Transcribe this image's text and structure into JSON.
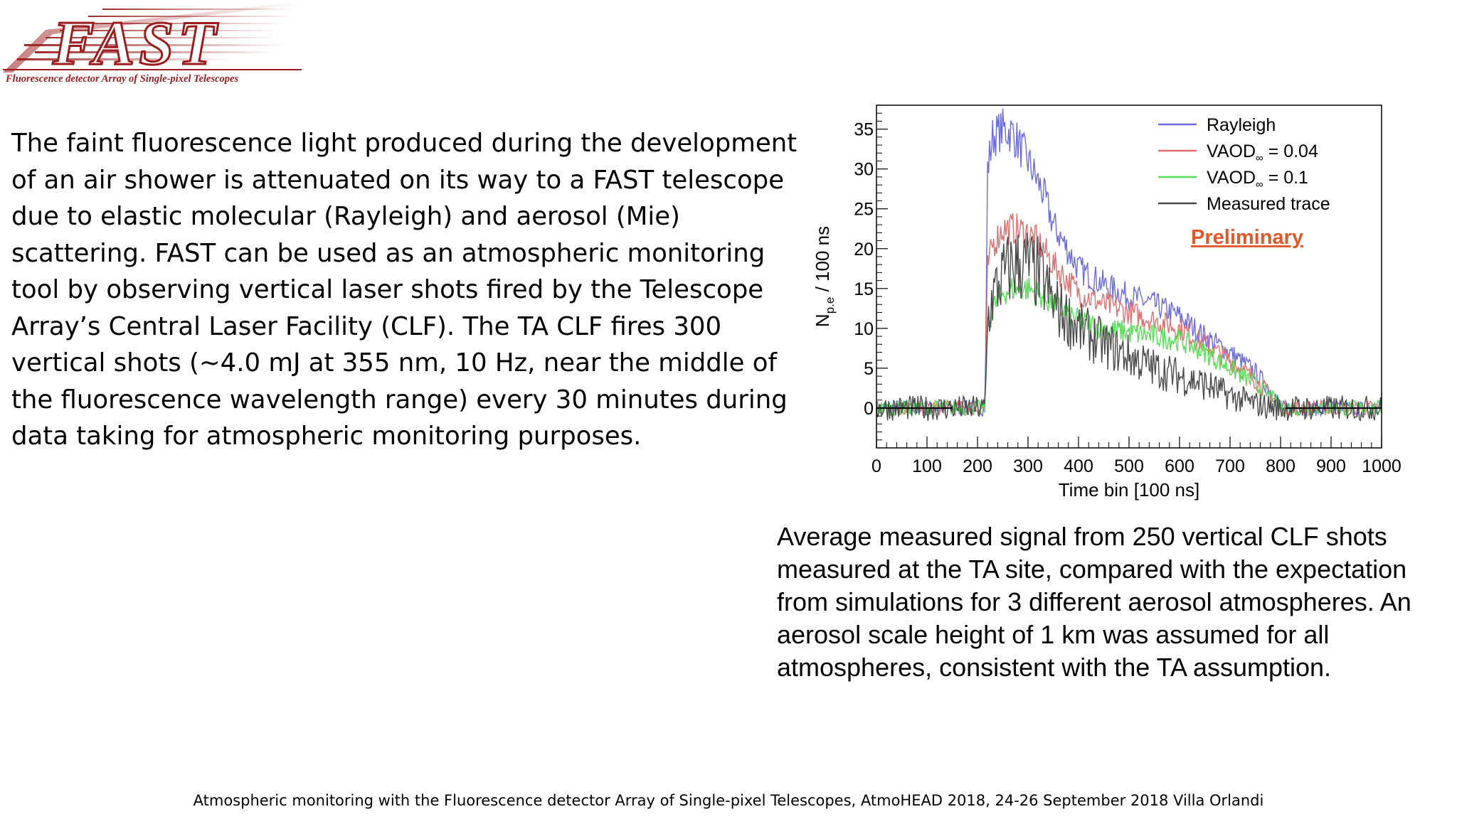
{
  "logo": {
    "word": "FAST",
    "subtitle": "Fluorescence detector Array of Single-pixel Telescopes",
    "color": "#9b1c1c"
  },
  "body_lines": [
    "The faint fluorescence light produced during the development",
    "of an air shower is attenuated on its way to a FAST telescope",
    "due to elastic molecular (Rayleigh) and aerosol (Mie)",
    "scattering. FAST can be used as an atmospheric monitoring",
    "tool  by observing vertical laser shots fired by the Telescope",
    "Array’s Central Laser Facility (CLF). The TA CLF fires 300",
    "vertical shots (∼4.0 mJ at 355 nm, 10 Hz, near the middle of",
    "the fluorescence wavelength range) every 30 minutes during",
    "data taking for atmospheric monitoring purposes."
  ],
  "caption_lines": [
    "Average measured signal from 250 vertical CLF shots",
    "measured at the TA site, compared with the expectation",
    "from simulations for 3 different aerosol atmospheres. An",
    "aerosol scale height of 1 km was assumed for all",
    "atmospheres, consistent with the TA assumption."
  ],
  "footer": "Atmospheric monitoring with the Fluorescence detector Array of Single-pixel Telescopes, AtmoHEAD 2018, 24-26 September 2018 Villa Orlandi",
  "chart_data": {
    "type": "line",
    "title": "",
    "xlabel": "Time bin [100 ns]",
    "ylabel_main": "N",
    "ylabel_sub": "p.e",
    "ylabel_rest": " / 100 ns",
    "xlim": [
      0,
      1000
    ],
    "ylim": [
      -5,
      38
    ],
    "xticks": [
      0,
      100,
      200,
      300,
      400,
      500,
      600,
      700,
      800,
      900,
      1000
    ],
    "yticks": [
      0,
      5,
      10,
      15,
      20,
      25,
      30,
      35
    ],
    "legend_position": "top-right",
    "annotation": "Preliminary",
    "annotation_color": "#e0582a",
    "x": [
      0,
      150,
      200,
      215,
      220,
      230,
      250,
      270,
      300,
      330,
      350,
      400,
      450,
      500,
      550,
      600,
      650,
      700,
      750,
      790,
      800,
      810,
      900,
      1000
    ],
    "series": [
      {
        "name": "Rayleigh",
        "legend_sub": "",
        "legend_rest": "",
        "color": "#6b6be0",
        "values": [
          0,
          0,
          0,
          0,
          30,
          34,
          35,
          34.5,
          31,
          27,
          23,
          17.5,
          15.5,
          14,
          13,
          11.5,
          9,
          7,
          4.5,
          1.5,
          0,
          0,
          0,
          0
        ]
      },
      {
        "name": "VAOD",
        "legend_sub": "∞",
        "legend_rest": " = 0.04",
        "color": "#e07070",
        "values": [
          0,
          0,
          0,
          0,
          17.5,
          20.5,
          22.5,
          22.5,
          22,
          20,
          18,
          14.5,
          13,
          12,
          11,
          10,
          8,
          6,
          3.5,
          1,
          0,
          0,
          0,
          0
        ]
      },
      {
        "name": "VAOD",
        "legend_sub": "∞",
        "legend_rest": " = 0.1",
        "color": "#55dd55",
        "values": [
          0,
          0,
          0,
          0,
          10,
          12.5,
          14.5,
          15,
          15,
          14,
          13,
          11,
          10,
          9.5,
          9,
          8.5,
          7,
          5,
          3,
          0.8,
          0,
          0,
          0,
          0
        ]
      },
      {
        "name": "Measured trace",
        "legend_sub": "",
        "legend_rest": "",
        "color": "#4a4a4a",
        "values": [
          0,
          0,
          0,
          0,
          11,
          14,
          16.5,
          18,
          18,
          16,
          13,
          10,
          8,
          6.5,
          5,
          4,
          3,
          1.5,
          0.5,
          0,
          0,
          0,
          0,
          0
        ]
      }
    ]
  }
}
